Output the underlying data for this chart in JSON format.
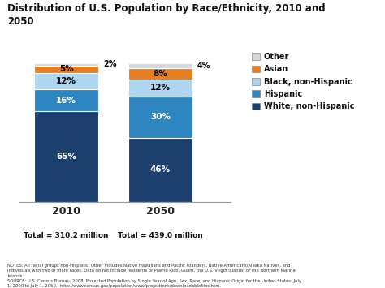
{
  "title": "Distribution of U.S. Population by Race/Ethnicity, 2010 and\n2050",
  "years": [
    "2010",
    "2050"
  ],
  "totals": [
    "Total = 310.2 million",
    "Total = 439.0 million"
  ],
  "categories": [
    "White, non-Hispanic",
    "Hispanic",
    "Black, non-Hispanic",
    "Asian",
    "Other"
  ],
  "values_2010": [
    65,
    16,
    12,
    5,
    2
  ],
  "values_2050": [
    46,
    30,
    12,
    8,
    4
  ],
  "colors": [
    "#1c3f6e",
    "#2e86c1",
    "#aed6f1",
    "#e67e22",
    "#d5d8dc"
  ],
  "bar_width": 0.55,
  "x_positions": [
    0.3,
    1.1
  ],
  "notes_line1": "NOTES: All racial groups non-Hispanic. Other includes Native Hawaiians and Pacific Islanders, Native Americans/Alaska Natives, and",
  "notes_line2": "individuals with two or more races. Data do not include residents of Puerto Rico, Guam, the U.S. Virgin Islands, or the Northern Marina",
  "notes_line3": "Islands.",
  "notes_line4": "SOURCE: U.S. Census Bureau, 2008, Projected Population by Single Year of Age, Sex, Race, and Hispanic Origin for the United States: July",
  "notes_line5": "1, 2000 to July 1, 2050.  http://www.census.gov/population/www/projections/downloadablefiles.htm.",
  "legend_labels": [
    "Other",
    "Asian",
    "Black, non-Hispanic",
    "Hispanic",
    "White, non-Hispanic"
  ],
  "legend_colors": [
    "#d5d8dc",
    "#e67e22",
    "#aed6f1",
    "#2e86c1",
    "#1c3f6e"
  ],
  "background_color": "#ffffff",
  "ylim": [
    0,
    108
  ]
}
